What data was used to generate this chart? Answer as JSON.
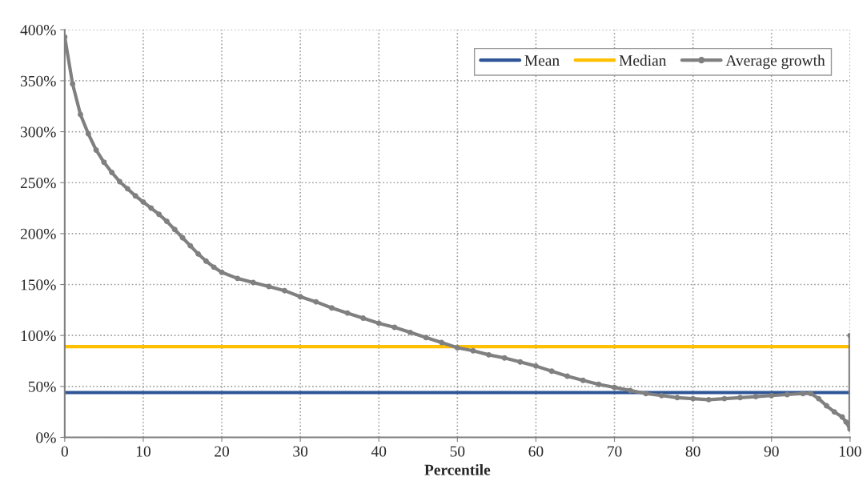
{
  "chart_data": {
    "type": "line",
    "xlabel": "Percentile",
    "xlim": [
      0,
      100
    ],
    "xticks": [
      0,
      10,
      20,
      30,
      40,
      50,
      60,
      70,
      80,
      90,
      100
    ],
    "ylim": [
      0,
      400
    ],
    "yticks": [
      {
        "value": 0,
        "label": "0%"
      },
      {
        "value": 50,
        "label": "50%"
      },
      {
        "value": 100,
        "label": "100%"
      },
      {
        "value": 150,
        "label": "150%"
      },
      {
        "value": 200,
        "label": "200%"
      },
      {
        "value": 250,
        "label": "250%"
      },
      {
        "value": 300,
        "label": "300%"
      },
      {
        "value": 350,
        "label": "350%"
      },
      {
        "value": 400,
        "label": "400%"
      }
    ],
    "grid": true,
    "legend": "top right",
    "ref_lines": [
      {
        "axis": "y",
        "value": 44,
        "label": "Mean",
        "color": "#2f5597"
      },
      {
        "axis": "y",
        "value": 89,
        "label": "Median",
        "color": "#ffc000"
      }
    ],
    "series": [
      {
        "name": "Average growth",
        "color": "#808080",
        "marker": "circle",
        "x": [
          0,
          1,
          2,
          3,
          4,
          5,
          6,
          7,
          8,
          9,
          10,
          11,
          12,
          13,
          14,
          15,
          16,
          17,
          18,
          19,
          20,
          22,
          24,
          26,
          28,
          30,
          32,
          34,
          36,
          38,
          40,
          42,
          44,
          46,
          48,
          50,
          52,
          54,
          56,
          58,
          60,
          62,
          64,
          66,
          68,
          70,
          72,
          74,
          76,
          78,
          80,
          82,
          84,
          86,
          88,
          90,
          92,
          94,
          95,
          96,
          97,
          98,
          99,
          99.5,
          100,
          100
        ],
        "values": [
          393,
          347,
          317,
          298,
          282,
          270,
          260,
          251,
          244,
          237,
          231,
          225,
          219,
          212,
          204,
          196,
          188,
          180,
          173,
          167,
          162,
          156,
          152,
          148,
          144,
          138,
          133,
          127,
          122,
          117,
          112,
          108,
          103,
          98,
          93,
          88,
          85,
          81,
          78,
          74,
          70,
          65,
          60,
          56,
          52,
          49,
          46,
          43,
          41,
          39,
          38,
          37,
          38,
          39,
          40,
          41,
          42,
          43,
          43,
          38,
          31,
          25,
          20,
          15,
          8,
          100
        ]
      }
    ]
  }
}
